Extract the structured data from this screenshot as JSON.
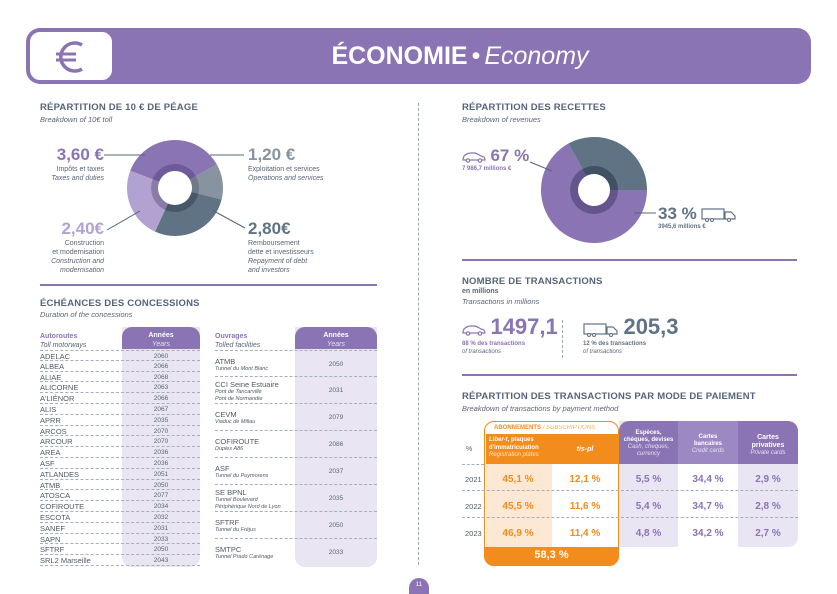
{
  "header": {
    "title_fr": "ÉCONOMIE",
    "separator": "•",
    "title_en": "Economy",
    "icon": "euro-icon"
  },
  "toll": {
    "title": "RÉPARTITION DE 10 € DE PÉAGE",
    "subtitle": "Breakdown of 10€ toll",
    "items": [
      {
        "value": "3,60 €",
        "label_fr": "Impôts et taxes",
        "label_en": "Taxes and duties",
        "color": "#8a74b4"
      },
      {
        "value": "1,20 €",
        "label_fr": "Exploitation et services",
        "label_en": "Operations and services",
        "color": "#8793a0"
      },
      {
        "value": "2,80€",
        "label_fr_1": "Remboursement",
        "label_fr_2": "dette et investisseurs",
        "label_en_1": "Repayment of debt",
        "label_en_2": "and investors",
        "color": "#5f7385"
      },
      {
        "value": "2,40€",
        "label_fr_1": "Construction",
        "label_fr_2": "et modernisation",
        "label_en_1": "Construction and",
        "label_en_2": "modernisation",
        "color": "#b2a2d2"
      }
    ]
  },
  "chart_data": [
    {
      "type": "pie",
      "title": "RÉPARTITION DE 10 € DE PÉAGE",
      "categories": [
        "Impôts et taxes",
        "Exploitation et services",
        "Remboursement dette et investisseurs",
        "Construction et modernisation"
      ],
      "values": [
        3.6,
        1.2,
        2.8,
        2.4
      ],
      "colors": [
        "#8a74b4",
        "#8793a0",
        "#5f7385",
        "#b2a2d2"
      ],
      "unit": "€"
    },
    {
      "type": "pie",
      "title": "RÉPARTITION DES RECETTES",
      "categories": [
        "Véhicules légers",
        "Poids lourds"
      ],
      "values": [
        67,
        33
      ],
      "colors": [
        "#8a74b4",
        "#5f7385"
      ],
      "unit": "%"
    }
  ],
  "concessions": {
    "title": "ÉCHÉANCES DES CONCESSIONS",
    "subtitle": "Duration of the concessions",
    "motorways_header_fr": "Autoroutes",
    "motorways_header_en": "Toll motorways",
    "years_header_fr": "Années",
    "years_header_en": "Years",
    "motorways": [
      {
        "name": "ADELAC",
        "year": "2060"
      },
      {
        "name": "ALBEA",
        "year": "2066"
      },
      {
        "name": "ALIAE",
        "year": "2068"
      },
      {
        "name": "ALICORNE",
        "year": "2063"
      },
      {
        "name": "A'LIÉNOR",
        "year": "2066"
      },
      {
        "name": "ALIS",
        "year": "2067"
      },
      {
        "name": "APRR",
        "year": "2035"
      },
      {
        "name": "ARCOS",
        "year": "2070"
      },
      {
        "name": "ARCOUR",
        "year": "2070"
      },
      {
        "name": "AREA",
        "year": "2036"
      },
      {
        "name": "ASF",
        "year": "2036"
      },
      {
        "name": "ATLANDES",
        "year": "2051"
      },
      {
        "name": "ATMB",
        "year": "2050"
      },
      {
        "name": "ATOSCA",
        "year": "2077"
      },
      {
        "name": "COFIROUTE",
        "year": "2034"
      },
      {
        "name": "ESCOTA",
        "year": "2032"
      },
      {
        "name": "SANEF",
        "year": "2031"
      },
      {
        "name": "SAPN",
        "year": "2033"
      },
      {
        "name": "SFTRF",
        "year": "2050"
      },
      {
        "name": "SRL2 Marseille",
        "year": "2043"
      }
    ],
    "facilities_header_fr": "Ouvrages",
    "facilities_header_en": "Tolled facilities",
    "facilities": [
      {
        "name": "ATMB",
        "sub1": "Tunnel du Mont Blanc",
        "sub2": "",
        "year": "2050"
      },
      {
        "name": "CCI Seine Estuaire",
        "sub1": "Pont de Tancarville",
        "sub2": "Pont de Normandie",
        "year": "2031"
      },
      {
        "name": "CEVM",
        "sub1": "Viaduc de Millau",
        "sub2": "",
        "year": "2079"
      },
      {
        "name": "COFIROUTE",
        "sub1": "Duplex A86",
        "sub2": "",
        "year": "2086"
      },
      {
        "name": "ASF",
        "sub1": "Tunnel du Puymorens",
        "sub2": "",
        "year": "2037"
      },
      {
        "name": "SE BPNL",
        "sub1": "Tunnel Boulevard",
        "sub2": "Périphérique Nord de Lyon",
        "year": "2035"
      },
      {
        "name": "SFTRF",
        "sub1": "Tunnel du Fréjus",
        "sub2": "",
        "year": "2050"
      },
      {
        "name": "SMTPC",
        "sub1": "Tunnel Prado Carénage",
        "sub2": "",
        "year": "2033"
      }
    ]
  },
  "revenues": {
    "title": "RÉPARTITION DES RECETTES",
    "subtitle": "Breakdown of revenues",
    "cars_pct": "67 %",
    "cars_amount": "7 986,7 millions €",
    "trucks_pct": "33 %",
    "trucks_amount": "3945,6 millions €",
    "car_icon": "car-icon",
    "truck_icon": "truck-icon"
  },
  "transactions": {
    "title": "NOMBRE DE TRANSACTIONS",
    "unit": "en millions",
    "subtitle": "Transactions in millions",
    "cars_value": "1497,1",
    "cars_share": "88 % des transactions",
    "cars_share_en": "of transactions",
    "trucks_value": "205,3",
    "trucks_share": "12 % des transactions",
    "trucks_share_en": "of transactions"
  },
  "payment": {
    "title": "RÉPARTITION DES TRANSACTIONS PAR MODE DE PAIEMENT",
    "subtitle": "Breakdown of transactions by payment method",
    "subscriptions_fr": "ABONNEMENTS",
    "subscriptions_en": "/ SUBSCRIPTIONS",
    "pct_label": "%",
    "col1_brand": "Liber-t",
    "col1_fr_a": ", plaques",
    "col1_fr_b": "d'immatriculation",
    "col1_en": "Registration plates",
    "col2": "tis-pl",
    "col3_fr_1": "Espèces,",
    "col3_fr_2": "chèques, devises",
    "col3_en_1": "Cash, cheques,",
    "col3_en_2": "currency",
    "col4_fr_1": "Cartes",
    "col4_fr_2": "bancaires",
    "col4_en": "Credit cards",
    "col5_fr_1": "Cartes",
    "col5_fr_2": "privatives",
    "col5_en": "Private cards",
    "rows": [
      {
        "year": "2021",
        "v": [
          "45,1 %",
          "12,1 %",
          "5,5 %",
          "34,4 %",
          "2,9 %"
        ]
      },
      {
        "year": "2022",
        "v": [
          "45,5 %",
          "11,6 %",
          "5,4 %",
          "34,7 %",
          "2,8 %"
        ]
      },
      {
        "year": "2023",
        "v": [
          "46,9 %",
          "11,4 %",
          "4,8 %",
          "34,2 %",
          "2,7 %"
        ]
      }
    ],
    "subscriptions_total": "58,3 %",
    "colors": {
      "orange": "#f28c1c",
      "violet": "#8a74b4"
    }
  },
  "page_number": "11"
}
